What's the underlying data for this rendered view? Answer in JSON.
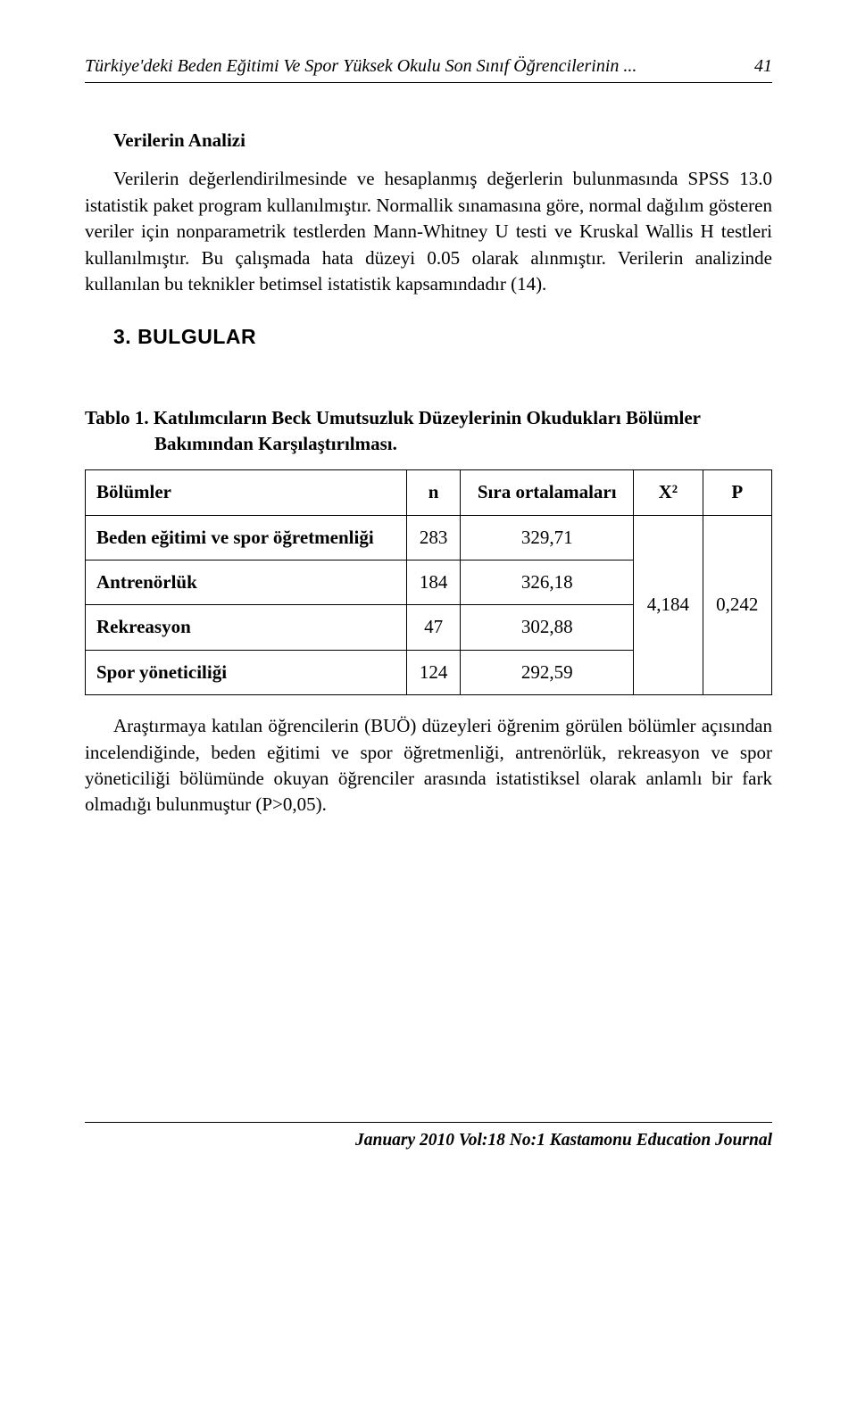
{
  "running_header": {
    "title": "Türkiye'deki Beden Eğitimi Ve Spor Yüksek Okulu Son Sınıf Öğrencilerinin ...",
    "page_number": "41"
  },
  "analysis": {
    "subtitle": "Verilerin Analizi",
    "paragraph": "Verilerin değerlendirilmesinde ve hesaplanmış değerlerin bulunmasında SPSS 13.0 istatistik paket program kullanılmıştır. Normallik sınamasına göre, normal dağılım gösteren veriler için nonparametrik testlerden Mann-Whitney U testi ve Kruskal Wallis H testleri kullanılmıştır. Bu çalışmada hata düzeyi 0.05 olarak alınmıştır. Verilerin analizinde kullanılan bu teknikler betimsel istatistik kapsamındadır (14)."
  },
  "results": {
    "heading": "3. BULGULAR"
  },
  "table1": {
    "caption_prefix": "Tablo 1. ",
    "caption_text": "Katılımcıların Beck Umutsuzluk Düzeylerinin Okudukları Bölümler Bakımından Karşılaştırılması.",
    "headers": {
      "col1": "Bölümler",
      "col2": "n",
      "col3": "Sıra ortalamaları",
      "col4": "X²",
      "col5": "P"
    },
    "rows": [
      {
        "label": "Beden eğitimi ve spor öğretmenliği",
        "n": "283",
        "mean": "329,71"
      },
      {
        "label": "Antrenörlük",
        "n": "184",
        "mean": "326,18"
      },
      {
        "label": "Rekreasyon",
        "n": "47",
        "mean": "302,88"
      },
      {
        "label": "Spor yöneticiliği",
        "n": "124",
        "mean": "292,59"
      }
    ],
    "x2": "4,184",
    "p": "0,242"
  },
  "results_paragraph": "Araştırmaya katılan öğrencilerin (BUÖ) düzeyleri öğrenim görülen bölümler açısından incelendiğinde, beden eğitimi ve spor öğretmenliği, antrenörlük, rekreasyon ve spor yöneticiliği bölümünde okuyan öğrenciler arasında istatistiksel olarak anlamlı bir fark olmadığı bulunmuştur (P>0,05).",
  "footer": {
    "text": "January 2010 Vol:18 No:1 Kastamonu Education Journal"
  }
}
